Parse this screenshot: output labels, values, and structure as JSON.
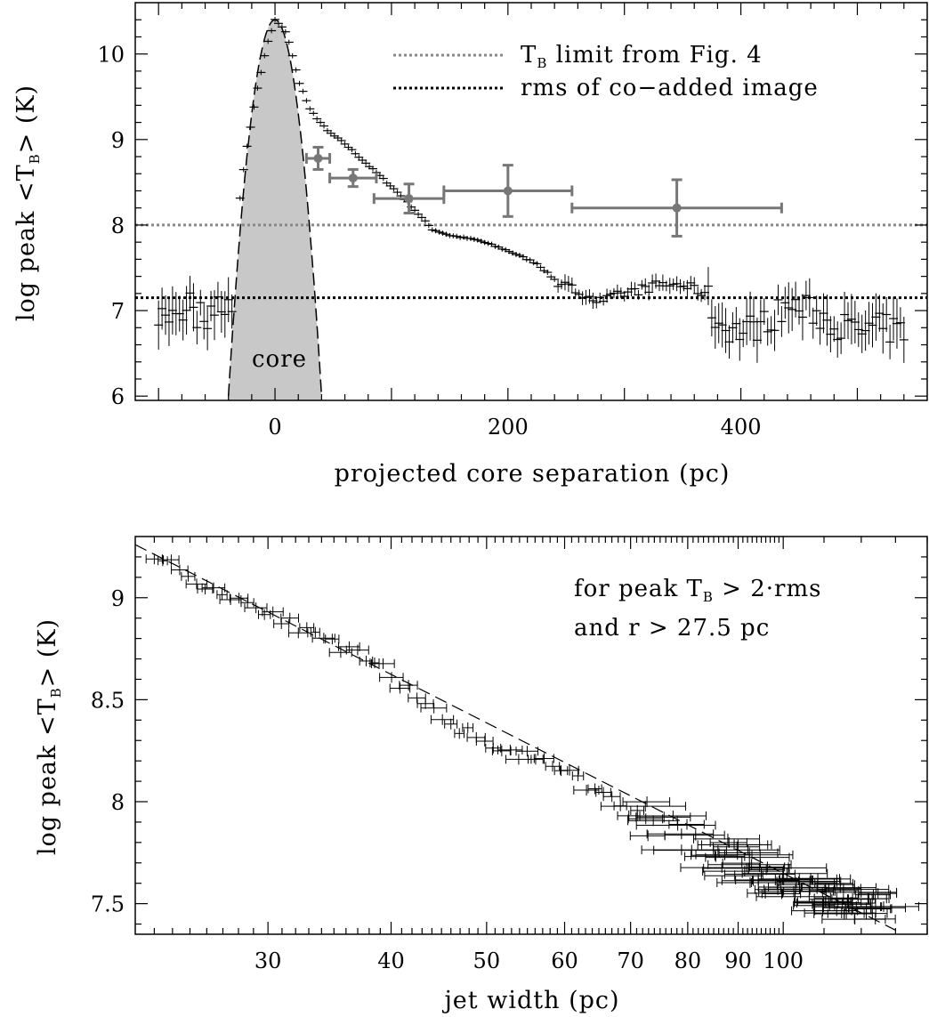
{
  "chart_data": [
    {
      "type": "scatter",
      "xlabel": "projected core separation (pc)",
      "ylabel_prefix": "log peak <T",
      "ylabel_sub": "B",
      "ylabel_suffix": "> (K)",
      "xlim": [
        -120,
        560
      ],
      "ylim": [
        5.95,
        10.6
      ],
      "xticks": [
        0,
        200,
        400
      ],
      "xtick_labels": [
        "0",
        "200",
        "400"
      ],
      "yticks": [
        6,
        7,
        8,
        9,
        10
      ],
      "ytick_labels": [
        "6",
        "7",
        "8",
        "9",
        "10"
      ],
      "legend": {
        "placement": "top-right",
        "entries": [
          {
            "text_main": "T",
            "text_sub": "B",
            "text_rest": " limit from Fig. 4",
            "style": "dotted",
            "color": "#888888"
          },
          {
            "text_main": "rms of co−added image",
            "text_sub": "",
            "text_rest": "",
            "style": "dotted",
            "color": "#000000"
          }
        ]
      },
      "hlines": [
        {
          "y": 8.0,
          "color": "#888888"
        },
        {
          "y": 7.15,
          "color": "#000000"
        }
      ],
      "core_label": "core",
      "core_profile": {
        "center": 0,
        "peak": 10.4,
        "half_width_at_6": 40
      },
      "colors": {
        "core_fill": "#c8c8c8",
        "gray_points": "#777777",
        "profile": "#000000"
      },
      "gray_points": [
        {
          "x": 37,
          "y": 8.78,
          "xerr": 10,
          "yerr": 0.13
        },
        {
          "x": 67,
          "y": 8.55,
          "xerr": 20,
          "yerr": 0.1
        },
        {
          "x": 115,
          "y": 8.31,
          "xerr": 30,
          "yerr": 0.17
        },
        {
          "x": 200,
          "y": 8.4,
          "xerr": 55,
          "yerr": 0.3
        },
        {
          "x": 345,
          "y": 8.2,
          "xerr": 90,
          "yerr": 0.33
        }
      ],
      "profile_nodes": [
        [
          -45,
          7.45
        ],
        [
          -35,
          7.8
        ],
        [
          -25,
          8.85
        ],
        [
          -15,
          9.6
        ],
        [
          -7,
          10.1
        ],
        [
          0,
          10.4
        ],
        [
          10,
          10.25
        ],
        [
          20,
          9.7
        ],
        [
          30,
          9.35
        ],
        [
          45,
          9.1
        ],
        [
          60,
          8.95
        ],
        [
          80,
          8.7
        ],
        [
          100,
          8.45
        ],
        [
          115,
          8.25
        ],
        [
          125,
          8.1
        ],
        [
          135,
          7.95
        ],
        [
          150,
          7.88
        ],
        [
          175,
          7.82
        ],
        [
          200,
          7.7
        ],
        [
          225,
          7.55
        ],
        [
          245,
          7.3
        ],
        [
          265,
          7.2
        ],
        [
          280,
          7.1
        ],
        [
          300,
          7.2
        ],
        [
          315,
          7.25
        ],
        [
          330,
          7.3
        ],
        [
          350,
          7.3
        ],
        [
          370,
          7.2
        ],
        [
          380,
          6.85
        ],
        [
          400,
          6.75
        ],
        [
          420,
          6.85
        ],
        [
          440,
          7.05
        ],
        [
          460,
          7.0
        ],
        [
          480,
          6.85
        ],
        [
          500,
          6.75
        ],
        [
          520,
          6.8
        ],
        [
          540,
          6.75
        ]
      ],
      "noise_nodes": [
        [
          -98,
          6.95
        ],
        [
          -92,
          6.85
        ],
        [
          -86,
          7.05
        ],
        [
          -80,
          6.95
        ],
        [
          -74,
          7.15
        ],
        [
          -68,
          6.9
        ],
        [
          -62,
          7.0
        ],
        [
          -56,
          6.9
        ],
        [
          -50,
          7.1
        ]
      ]
    },
    {
      "type": "scatter",
      "xlabel": "jet width (pc)",
      "ylabel_prefix": "log peak <T",
      "ylabel_sub": "B",
      "ylabel_suffix": "> (K)",
      "log_x": true,
      "xlim": [
        22,
        140
      ],
      "ylim": [
        7.35,
        9.3
      ],
      "xticks": [
        30,
        40,
        50,
        60,
        70,
        80,
        90,
        100
      ],
      "xtick_labels": [
        "30",
        "40",
        "50",
        "60",
        "70",
        "80",
        "90",
        "100"
      ],
      "yticks": [
        7.5,
        8,
        8.5,
        9
      ],
      "ytick_labels": [
        "7.5",
        "8",
        "8.5",
        "9"
      ],
      "annotation_line1": "for peak T",
      "annotation_line1_sub": "B",
      "annotation_line1_rest": " > 2·rms",
      "annotation_line2": "and r > 27.5 pc",
      "fit_line": {
        "x": [
          22,
          130
        ],
        "y": [
          9.26,
          7.37
        ]
      },
      "trend_nodes": [
        [
          23,
          9.22
        ],
        [
          25,
          9.1
        ],
        [
          27,
          9.02
        ],
        [
          30,
          8.94
        ],
        [
          33,
          8.82
        ],
        [
          36,
          8.74
        ],
        [
          39,
          8.66
        ],
        [
          41,
          8.58
        ],
        [
          43,
          8.47
        ],
        [
          46,
          8.38
        ],
        [
          50,
          8.3
        ],
        [
          54,
          8.23
        ],
        [
          58,
          8.18
        ],
        [
          62,
          8.1
        ],
        [
          66,
          8.02
        ],
        [
          70,
          7.95
        ],
        [
          75,
          7.88
        ],
        [
          80,
          7.82
        ],
        [
          85,
          7.78
        ],
        [
          90,
          7.7
        ],
        [
          100,
          7.6
        ],
        [
          110,
          7.55
        ],
        [
          120,
          7.5
        ],
        [
          130,
          7.48
        ]
      ]
    }
  ]
}
